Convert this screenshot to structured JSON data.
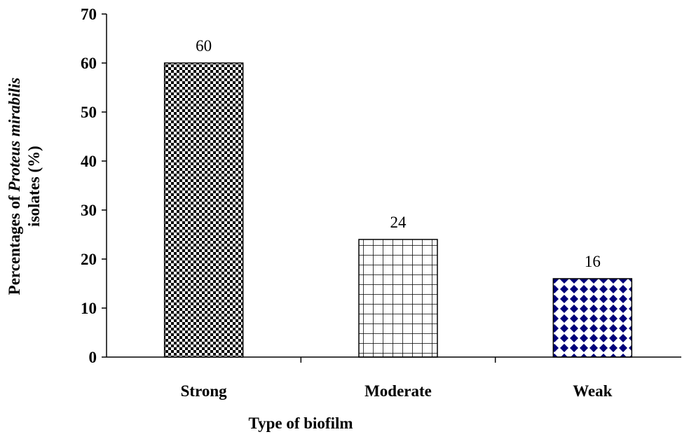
{
  "chart_data": {
    "type": "bar",
    "categories": [
      "Strong",
      "Moderate",
      "Weak"
    ],
    "values": [
      60,
      24,
      16
    ],
    "data_labels": [
      "60",
      "24",
      "16"
    ],
    "title": "",
    "xlabel": "Type of biofilm",
    "ylabel": {
      "line1_prefix": "Percentages of ",
      "line1_italic": "Proteus mirabilis",
      "line2": "isolates (%)"
    },
    "ylim": [
      0,
      70
    ],
    "yticks": [
      "0",
      "10",
      "20",
      "30",
      "40",
      "50",
      "60",
      "70"
    ],
    "grid": false,
    "legend": "none",
    "bar_patterns": [
      "checkerboard",
      "grid",
      "diamond-lattice"
    ],
    "colors": {
      "axis": "#000000",
      "bar_fill": "#ffffff",
      "bar_pattern": "#000000",
      "weak_pattern": "#00007a"
    }
  }
}
